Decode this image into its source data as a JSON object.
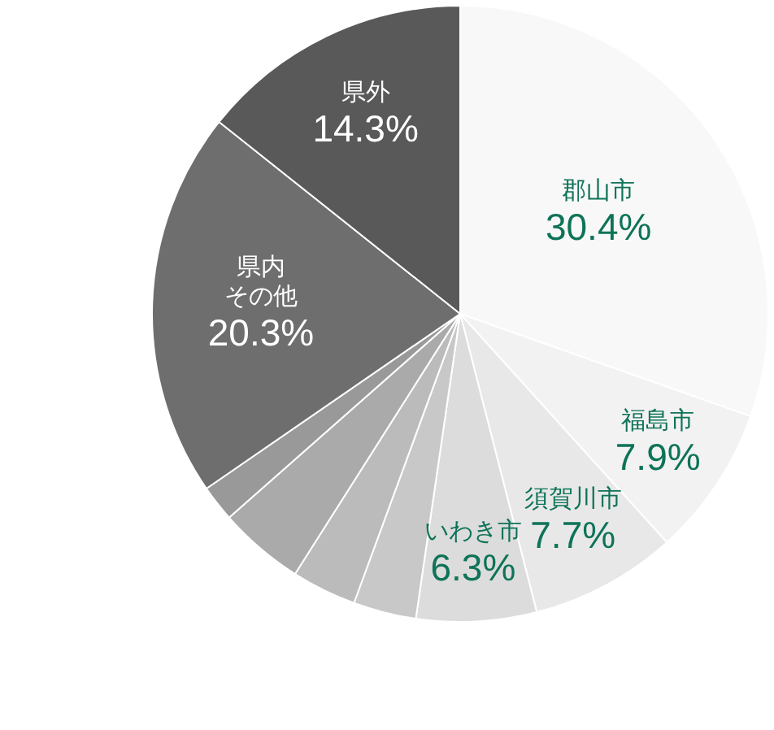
{
  "chart_data": {
    "type": "pie",
    "categories": [
      "郡山市",
      "福島市",
      "須賀川市",
      "いわき市",
      null,
      null,
      null,
      null,
      "県内その他",
      "県外"
    ],
    "values": [
      30.4,
      7.9,
      7.7,
      6.3,
      3.3,
      3.4,
      4.5,
      1.9,
      20.3,
      14.3
    ],
    "value_labels": [
      "30.4%",
      "7.9%",
      "7.7%",
      "6.3%",
      null,
      null,
      null,
      null,
      "20.3%",
      "14.3%"
    ],
    "colors": [
      "#f8f8f8",
      "#f2f2f2",
      "#e8e8e8",
      "#dcdcdc",
      "#c8c8c8",
      "#bbbbbb",
      "#aaaaaa",
      "#999999",
      "#6e6e6e",
      "#595959"
    ],
    "legend": false
  }
}
